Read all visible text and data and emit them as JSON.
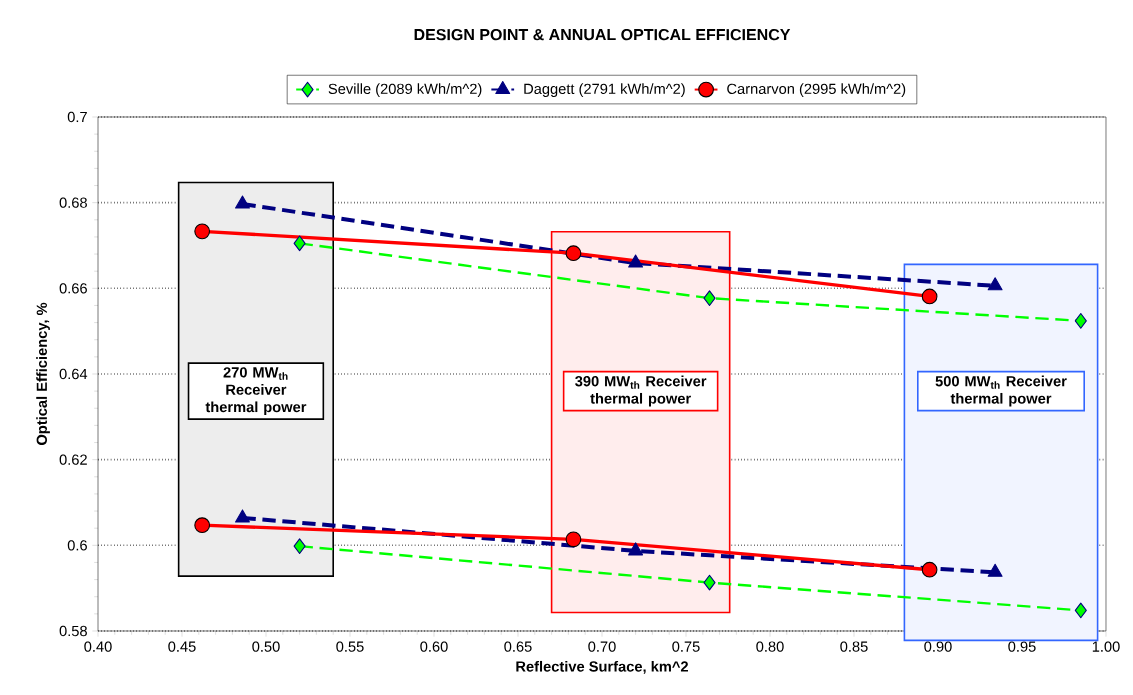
{
  "chart_data": {
    "type": "line",
    "title": "DESIGN POINT & ANNUAL OPTICAL EFFICIENCY",
    "xlabel": "Reflective Surface, km^2",
    "ylabel": "Optical Efficiency, %",
    "xlim": [
      0.4,
      1.0
    ],
    "xticks": [
      {
        "value": 0.4,
        "label": "0.40"
      },
      {
        "value": 0.45,
        "label": "0.45"
      },
      {
        "value": 0.5,
        "label": "0.50"
      },
      {
        "value": 0.55,
        "label": "0.55"
      },
      {
        "value": 0.6,
        "label": "0.60"
      },
      {
        "value": 0.65,
        "label": "0.65"
      },
      {
        "value": 0.7,
        "label": "0.70"
      },
      {
        "value": 0.75,
        "label": "0.75"
      },
      {
        "value": 0.8,
        "label": "0.80"
      },
      {
        "value": 0.85,
        "label": "0.85"
      },
      {
        "value": 0.9,
        "label": "0.90"
      },
      {
        "value": 0.95,
        "label": "0.95"
      },
      {
        "value": 1.0,
        "label": "1.00"
      }
    ],
    "ylim": [
      0.58,
      0.7
    ],
    "yticks": [
      0.58,
      0.6,
      0.62,
      0.64,
      0.66,
      0.68,
      0.7
    ],
    "grid": "y",
    "legend": "top",
    "series": [
      {
        "name": "Seville (2089 kWh/m^2)",
        "color": "#00ff00",
        "marker": "diamond",
        "line_style": "dashed",
        "x": [
          0.52,
          0.764,
          0.985
        ],
        "values": [
          0.6705,
          0.6577,
          0.6524
        ]
      },
      {
        "name": "Daggett (2791 kWh/m^2)",
        "color": "#000080",
        "marker": "triangle",
        "line_style": "dashed",
        "x": [
          0.486,
          0.72,
          0.934
        ],
        "values": [
          0.6797,
          0.6659,
          0.6606
        ]
      },
      {
        "name": "Carnarvon (2995 kWh/m^2)",
        "color": "#ff0000",
        "marker": "circle",
        "line_style": "solid",
        "x": [
          0.462,
          0.683,
          0.895
        ],
        "values": [
          0.6733,
          0.6682,
          0.6581
        ]
      },
      {
        "color": "#00ff00",
        "marker": "diamond",
        "line_style": "dashed",
        "x": [
          0.52,
          0.764,
          0.985
        ],
        "values": [
          0.5998,
          0.5913,
          0.5848
        ]
      },
      {
        "color": "#000080",
        "marker": "triangle",
        "line_style": "dashed",
        "x": [
          0.486,
          0.72,
          0.934
        ],
        "values": [
          0.6064,
          0.5987,
          0.5937
        ]
      },
      {
        "color": "#ff0000",
        "marker": "circle",
        "line_style": "solid",
        "x": [
          0.462,
          0.683,
          0.895
        ],
        "values": [
          0.6047,
          0.6014,
          0.5943
        ]
      }
    ],
    "bands": [
      {
        "axis": "x",
        "from": 0.448,
        "to": 0.54,
        "label": "270 MW$_{th}$ Receiver thermal power",
        "color": "#000000"
      },
      {
        "axis": "x",
        "from": 0.67,
        "to": 0.776,
        "label": "390 MW$_{th}$ Receiver thermal power",
        "color": "#ff0000"
      },
      {
        "axis": "x",
        "from": 0.88,
        "to": 0.995,
        "label": "500 MW$_{th}$ Receiver thermal power",
        "color": "#3366ff"
      }
    ]
  }
}
